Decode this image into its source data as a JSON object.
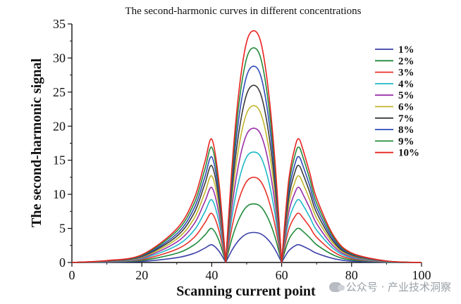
{
  "chart_data": {
    "type": "line",
    "title": "The second-harmonic curves in different concentrations",
    "xlabel": "Scanning current point",
    "ylabel": "The second-harmonic signal",
    "xlim": [
      0,
      100
    ],
    "ylim": [
      0,
      35
    ],
    "xticks": [
      "0",
      "20",
      "40",
      "60",
      "80",
      "100"
    ],
    "yticks": [
      "0",
      "5",
      "10",
      "15",
      "20",
      "25",
      "30",
      "35"
    ],
    "legend_position": "top-right",
    "x": [
      0,
      10,
      20,
      30,
      35,
      38,
      40,
      42,
      44,
      46,
      48,
      50,
      52,
      54,
      56,
      58,
      60,
      62,
      64,
      65,
      66,
      68,
      70,
      75,
      80,
      90,
      100
    ],
    "series": [
      {
        "name": "1%",
        "color": "#3a3fa8",
        "values": [
          0.0,
          0.04,
          0.16,
          0.7,
          1.35,
          2.1,
          2.6,
          1.7,
          0.0,
          2.0,
          3.4,
          4.2,
          4.4,
          4.2,
          3.4,
          2.0,
          0.0,
          1.7,
          2.5,
          2.6,
          2.4,
          1.9,
          1.35,
          0.55,
          0.2,
          0.03,
          0.0
        ]
      },
      {
        "name": "2%",
        "color": "#1e8a3a",
        "values": [
          0.0,
          0.08,
          0.31,
          1.35,
          2.6,
          4.0,
          5.0,
          3.3,
          0.0,
          3.9,
          6.6,
          8.2,
          8.6,
          8.2,
          6.6,
          3.9,
          0.0,
          3.3,
          4.8,
          5.0,
          4.6,
          3.65,
          2.6,
          1.05,
          0.38,
          0.06,
          0.0
        ]
      },
      {
        "name": "3%",
        "color": "#e8322b",
        "values": [
          0.0,
          0.11,
          0.44,
          1.95,
          3.7,
          5.8,
          7.2,
          4.8,
          0.0,
          5.7,
          9.6,
          11.9,
          12.5,
          11.9,
          9.6,
          5.7,
          0.0,
          4.8,
          6.9,
          7.2,
          6.6,
          5.25,
          3.7,
          1.5,
          0.55,
          0.09,
          0.0
        ]
      },
      {
        "name": "4%",
        "color": "#1fb8c8",
        "values": [
          0.0,
          0.14,
          0.57,
          2.5,
          4.75,
          7.4,
          9.2,
          6.1,
          0.0,
          7.4,
          12.5,
          15.5,
          16.2,
          15.5,
          12.5,
          7.4,
          0.0,
          6.1,
          8.8,
          9.2,
          8.5,
          6.7,
          4.75,
          1.95,
          0.7,
          0.11,
          0.0
        ]
      },
      {
        "name": "5%",
        "color": "#9b2fa8",
        "values": [
          0.0,
          0.17,
          0.68,
          3.0,
          5.7,
          8.9,
          11.0,
          7.3,
          0.0,
          9.0,
          15.2,
          18.8,
          19.7,
          18.8,
          15.2,
          9.0,
          0.0,
          7.3,
          10.5,
          11.0,
          10.1,
          8.0,
          5.7,
          2.3,
          0.85,
          0.14,
          0.0
        ]
      },
      {
        "name": "6%",
        "color": "#c2b52a",
        "values": [
          0.0,
          0.2,
          0.78,
          3.45,
          6.5,
          10.2,
          12.7,
          8.4,
          0.0,
          10.5,
          17.7,
          21.9,
          23.0,
          21.9,
          17.7,
          10.5,
          0.0,
          8.4,
          12.1,
          12.7,
          11.7,
          9.25,
          6.5,
          2.65,
          0.98,
          0.16,
          0.0
        ]
      },
      {
        "name": "7%",
        "color": "#3a3a3a",
        "values": [
          0.0,
          0.22,
          0.88,
          3.85,
          7.3,
          11.5,
          14.2,
          9.4,
          0.0,
          11.8,
          19.9,
          24.7,
          26.0,
          24.7,
          19.9,
          11.8,
          0.0,
          9.4,
          13.6,
          14.2,
          13.1,
          10.35,
          7.3,
          2.95,
          1.1,
          0.18,
          0.0
        ]
      },
      {
        "name": "8%",
        "color": "#2e4bb8",
        "values": [
          0.0,
          0.24,
          0.96,
          4.2,
          8.0,
          12.5,
          15.5,
          10.3,
          0.0,
          13.1,
          22.1,
          27.4,
          28.8,
          27.4,
          22.1,
          13.1,
          0.0,
          10.3,
          14.8,
          15.5,
          14.3,
          11.3,
          8.0,
          3.25,
          1.2,
          0.19,
          0.0
        ]
      },
      {
        "name": "9%",
        "color": "#238a3a",
        "values": [
          0.0,
          0.26,
          1.05,
          4.6,
          8.7,
          13.6,
          16.9,
          11.2,
          0.0,
          14.3,
          24.2,
          30.0,
          31.5,
          30.0,
          24.2,
          14.3,
          0.0,
          11.2,
          16.1,
          16.9,
          15.6,
          12.3,
          8.7,
          3.55,
          1.3,
          0.21,
          0.0
        ]
      },
      {
        "name": "10%",
        "color": "#e8221f",
        "values": [
          0.0,
          0.28,
          1.13,
          4.95,
          9.4,
          14.7,
          18.1,
          12.0,
          0.0,
          15.4,
          26.1,
          32.4,
          34.0,
          32.4,
          26.1,
          15.4,
          0.0,
          12.0,
          17.3,
          18.1,
          16.7,
          13.2,
          9.4,
          3.8,
          1.4,
          0.22,
          0.0
        ]
      }
    ]
  },
  "watermark": {
    "text": "公众号 · 产业技术洞察",
    "icon": "wechat-icon"
  }
}
